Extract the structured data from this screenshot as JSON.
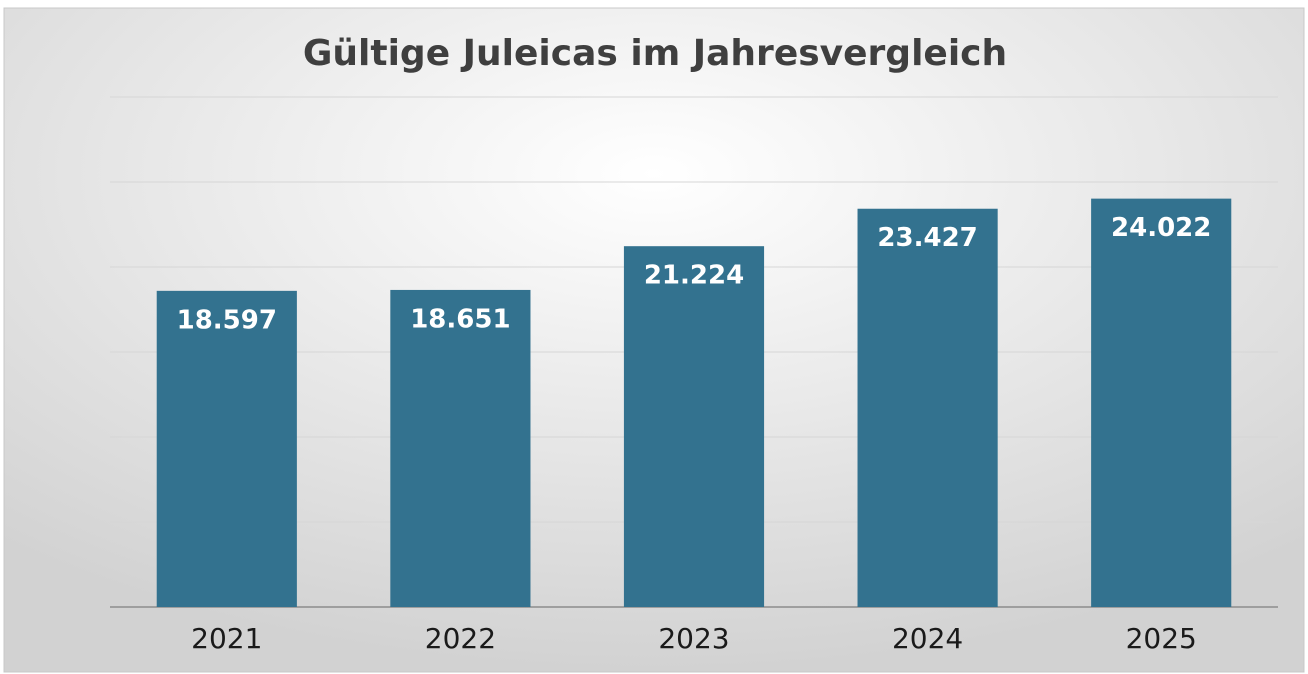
{
  "chart_data": {
    "type": "bar",
    "title": "Gültige Juleicas im Jahresvergleich",
    "categories": [
      "2021",
      "2022",
      "2023",
      "2024",
      "2025"
    ],
    "values": [
      18597,
      18651,
      21224,
      23427,
      24022
    ],
    "value_labels": [
      "18.597",
      "18.651",
      "21.224",
      "23.427",
      "24.022"
    ],
    "color": "#33728f",
    "ylim": [
      0,
      30000
    ],
    "yticks": [
      0,
      5000,
      10000,
      15000,
      20000,
      25000,
      30000
    ],
    "grid": true
  }
}
